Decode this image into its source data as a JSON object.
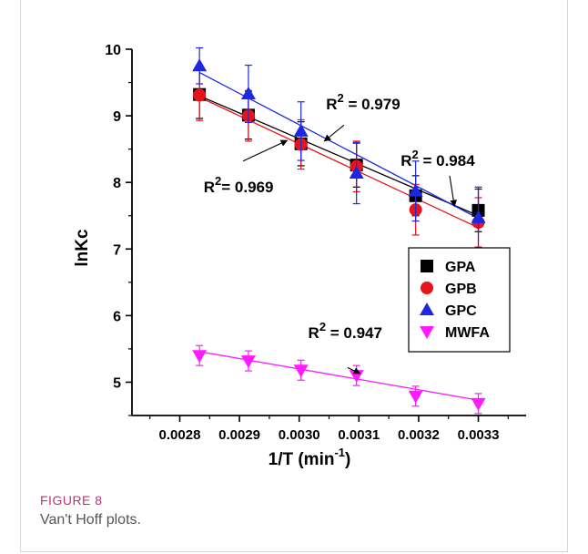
{
  "figure": {
    "label": "FIGURE 8",
    "caption": "Van't Hoff plots."
  },
  "chart_data": {
    "type": "scatter",
    "xlabel": "1/T (min",
    "xlabel_sup": "-1",
    "xlabel_end": ")",
    "ylabel": "lnKc",
    "xlim": [
      0.00272,
      0.00338
    ],
    "ylim": [
      4.5,
      10.0
    ],
    "x_ticks": [
      "0.0028",
      "0.0029",
      "0.0030",
      "0.0031",
      "0.0032",
      "0.0033"
    ],
    "x_tick_values": [
      0.0028,
      0.0029,
      0.003,
      0.0031,
      0.0032,
      0.0033
    ],
    "y_ticks": [
      "5",
      "6",
      "7",
      "8",
      "9",
      "10"
    ],
    "y_tick_values": [
      5,
      6,
      7,
      8,
      9,
      10
    ],
    "legend_position": "lower-right",
    "series": [
      {
        "name": "GPA",
        "marker": "square",
        "color": "#000000",
        "x": [
          0.002833,
          0.002915,
          0.003003,
          0.003096,
          0.003195,
          0.0033
        ],
        "y": [
          9.32,
          9.01,
          8.58,
          8.26,
          7.8,
          7.58
        ],
        "err": [
          0.36,
          0.36,
          0.33,
          0.33,
          0.3,
          0.32
        ],
        "fit": [
          9.3,
          7.5
        ]
      },
      {
        "name": "GPB",
        "marker": "circle",
        "color": "#e8141c",
        "x": [
          0.002833,
          0.002915,
          0.003003,
          0.003096,
          0.003195,
          0.0033
        ],
        "y": [
          9.31,
          9.0,
          8.57,
          8.24,
          7.59,
          7.4
        ],
        "err": [
          0.38,
          0.38,
          0.37,
          0.38,
          0.38,
          0.37
        ],
        "fit": [
          9.28,
          7.32
        ]
      },
      {
        "name": "GPC",
        "marker": "triangle-up",
        "color": "#1e27e0",
        "x": [
          0.002833,
          0.002915,
          0.003003,
          0.003096,
          0.003195,
          0.0033
        ],
        "y": [
          9.75,
          9.33,
          8.77,
          8.14,
          7.87,
          7.47
        ],
        "err": [
          0.27,
          0.43,
          0.44,
          0.46,
          0.45,
          0.46
        ],
        "fit": [
          9.65,
          7.46
        ]
      },
      {
        "name": "MWFA",
        "marker": "triangle-down",
        "color": "#ff1aff",
        "x": [
          0.002833,
          0.002915,
          0.003003,
          0.003096,
          0.003195,
          0.0033
        ],
        "y": [
          5.4,
          5.32,
          5.18,
          5.1,
          4.79,
          4.68
        ],
        "err": [
          0.15,
          0.15,
          0.15,
          0.15,
          0.15,
          0.15
        ],
        "fit": [
          5.46,
          4.73
        ]
      }
    ],
    "annotations": [
      {
        "base": "R",
        "sup": "2",
        "rest": " = 0.979",
        "x": 0.003045,
        "y": 9.1,
        "arrow_to": [
          0.003042,
          8.62
        ],
        "arrow_from": [
          0.003075,
          8.86
        ]
      },
      {
        "base": "R",
        "sup": "2",
        "rest": "= 0.969",
        "x": 0.00284,
        "y": 7.85,
        "arrow_to": [
          0.00298,
          8.63
        ],
        "arrow_from": [
          0.002906,
          8.32
        ]
      },
      {
        "base": "R",
        "sup": "2",
        "rest": " = 0.984",
        "x": 0.00317,
        "y": 8.25,
        "arrow_to": [
          0.00326,
          7.64
        ],
        "arrow_from": [
          0.003252,
          8.1
        ]
      },
      {
        "base": "R",
        "sup": "2",
        "rest": " = 0.947",
        "x": 0.003015,
        "y": 5.66,
        "arrow_to": [
          0.003102,
          5.13
        ],
        "arrow_from": [
          0.003081,
          5.22
        ]
      }
    ]
  }
}
